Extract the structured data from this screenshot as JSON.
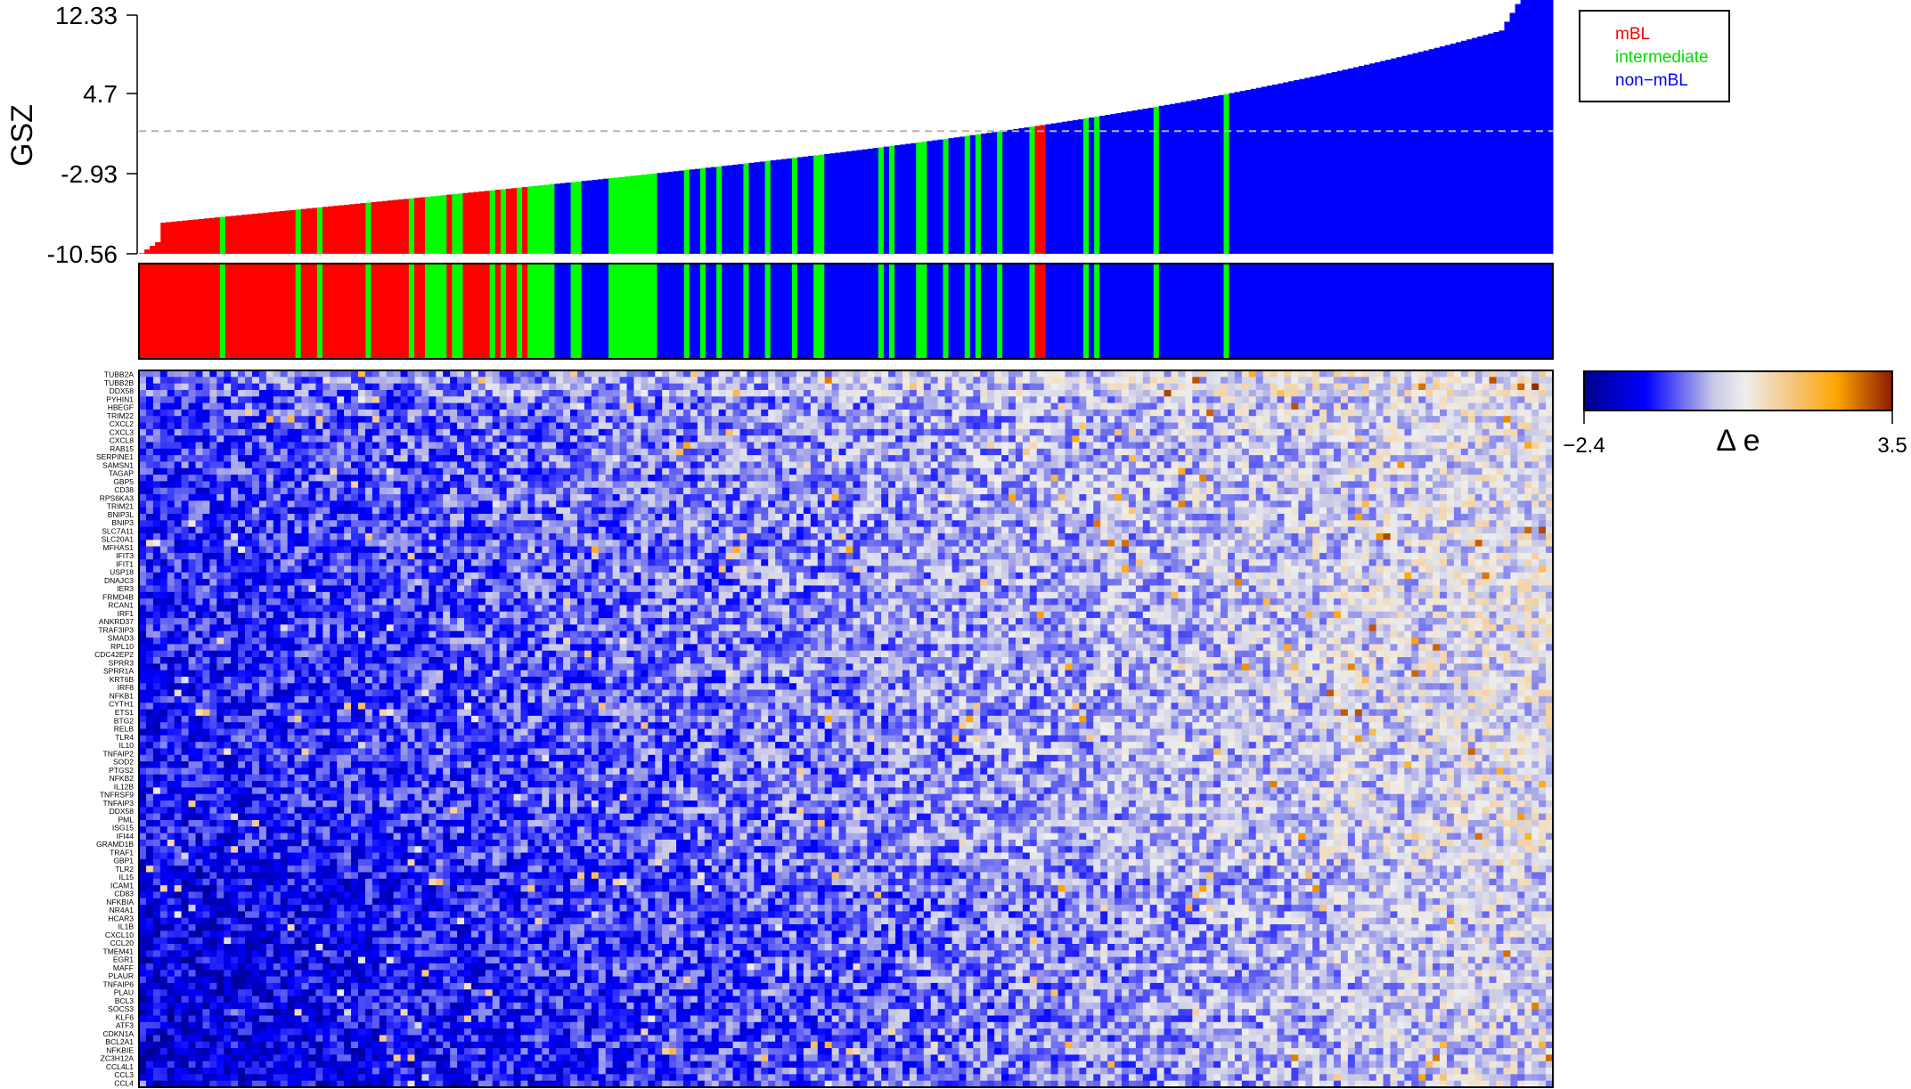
{
  "chart_data": [
    {
      "type": "bar",
      "ylabel": "GSZ",
      "yticks": [
        "12.33",
        "4.7",
        "-2.93",
        "-10.56"
      ],
      "ylim": [
        -10.56,
        12.33
      ],
      "threshold_line": 1.2,
      "n_samples": 262,
      "value_range": [
        -10.5,
        12.2
      ],
      "intermediate_positions": [
        15,
        29,
        33,
        42,
        50,
        53,
        54,
        55,
        56,
        58,
        59,
        65,
        67,
        70,
        72,
        73,
        74,
        75,
        76,
        80,
        81,
        87,
        88,
        89,
        90,
        91,
        92,
        93,
        94,
        95,
        101,
        104,
        107,
        112,
        116,
        121,
        125,
        126,
        137,
        139,
        144,
        145,
        149,
        153,
        155,
        159,
        165,
        175,
        177,
        188,
        201
      ],
      "mbl_positions": [
        166,
        167
      ],
      "legend": {
        "position": "top-right",
        "items": [
          {
            "label": "mBL",
            "color": "#ff0000"
          },
          {
            "label": "intermediate",
            "color": "#00ff00"
          },
          {
            "label": "non−mBL",
            "color": "#0000ff"
          }
        ]
      }
    },
    {
      "type": "heatmap",
      "genes": [
        "TUBB2A",
        "TUBB2B",
        "DDX58",
        "PYHIN1",
        "HBEGF",
        "TRIM22",
        "CXCL2",
        "CXCL3",
        "CXCL8",
        "RAB15",
        "SERPINE1",
        "SAMSN1",
        "TAGAP",
        "GBP5",
        "CD38",
        "RPS6KA3",
        "TRIM21",
        "BNIP3L",
        "BNIP3",
        "SLC7A11",
        "SLC20A1",
        "MFHAS1",
        "IFIT3",
        "IFIT1",
        "USP18",
        "DNAJC3",
        "IER3",
        "FRMD4B",
        "RCAN1",
        "IRF1",
        "ANKRD37",
        "TRAF3IP3",
        "SMAD3",
        "RPL10",
        "CDC42EP2",
        "SPRR3",
        "SPRR1A",
        "KRT6B",
        "IRF8",
        "NFKB1",
        "CYTH1",
        "ETS1",
        "BTG2",
        "RELB",
        "TLR4",
        "IL10",
        "TNFAIP2",
        "SOD2",
        "PTGS2",
        "NFKB2",
        "IL12B",
        "TNFRSF9",
        "TNFAIP3",
        "DDX58",
        "PML",
        "ISG15",
        "IFI44",
        "GRAMD1B",
        "TRAF1",
        "GBP1",
        "TLR2",
        "IL15",
        "ICAM1",
        "CD83",
        "NFKBIA",
        "NR4A1",
        "HCAR3",
        "IL1B",
        "CXCL10",
        "CCL20",
        "TMEM41",
        "EGR1",
        "MAFF",
        "PLAUR",
        "TNFAIP6",
        "PLAU",
        "BCL3",
        "SOCS3",
        "KLF6",
        "ATF3",
        "CDKN1A",
        "BCL2A1",
        "NFKBIE",
        "ZC3H12A",
        "CCL4L1",
        "CCL3",
        "CCL4"
      ],
      "samples": 262,
      "colorbar": {
        "title": "Δ e",
        "min": -2.4,
        "max": 3.5,
        "min_label": "−2.4",
        "max_label": "3.5",
        "colors": [
          "#00008b",
          "#0000ff",
          "#c8c8e6",
          "#eeeeee",
          "#f5c98a",
          "#ffa500",
          "#8b1a00"
        ]
      },
      "pattern": "left/top-left cells predominantly blue (low Δe); right side predominantly light orange (high Δe); scattered dark orange spikes"
    }
  ]
}
